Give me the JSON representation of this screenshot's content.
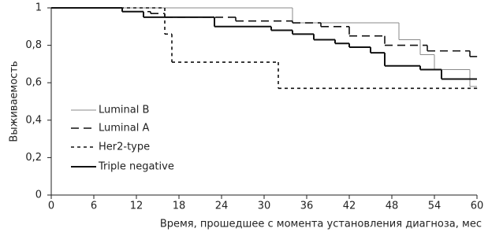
{
  "chart_data": {
    "type": "step",
    "xlabel": "Время, прошедшее с момента установления диагноза, мес",
    "ylabel": "Выживаемость",
    "xlim": [
      0,
      60
    ],
    "xticks": [
      0,
      6,
      12,
      18,
      24,
      30,
      36,
      42,
      48,
      54,
      60
    ],
    "ylim": [
      0,
      1
    ],
    "yticks": [
      0,
      {
        "value": 0.2,
        "label": "0,2"
      },
      {
        "value": 0.4,
        "label": "0,4"
      },
      {
        "value": 0.6,
        "label": "0,6"
      },
      {
        "value": 0.8,
        "label": "0,8"
      },
      1
    ],
    "legend": "left",
    "series": [
      {
        "name": "Luminal B",
        "color": "#8a8a8a",
        "line_style": "solid",
        "line_width": 1,
        "x": [
          0,
          34,
          49,
          52,
          54,
          59,
          60
        ],
        "values": [
          1,
          0.92,
          0.83,
          0.75,
          0.67,
          0.58,
          0.58
        ]
      },
      {
        "name": "Luminal A",
        "color": "#111111",
        "line_style": "dashed",
        "line_width": 1.6,
        "x": [
          0,
          10,
          14,
          16,
          26,
          34,
          38,
          42,
          47,
          53,
          59,
          60
        ],
        "values": [
          1,
          0.98,
          0.97,
          0.95,
          0.93,
          0.92,
          0.9,
          0.85,
          0.8,
          0.77,
          0.74,
          0.74
        ]
      },
      {
        "name": "Her2-type",
        "color": "#111111",
        "line_style": "dotted",
        "line_width": 1.6,
        "x": [
          0,
          16,
          17,
          32,
          60
        ],
        "values": [
          1,
          0.86,
          0.71,
          0.57,
          0.57
        ]
      },
      {
        "name": "Triple negative",
        "color": "#111111",
        "line_style": "solid",
        "line_width": 2,
        "x": [
          0,
          10,
          13,
          23,
          31,
          34,
          37,
          40,
          42,
          45,
          47,
          52,
          55,
          60
        ],
        "values": [
          1,
          0.98,
          0.95,
          0.9,
          0.88,
          0.86,
          0.83,
          0.81,
          0.79,
          0.76,
          0.69,
          0.67,
          0.62,
          0.62
        ]
      }
    ]
  }
}
